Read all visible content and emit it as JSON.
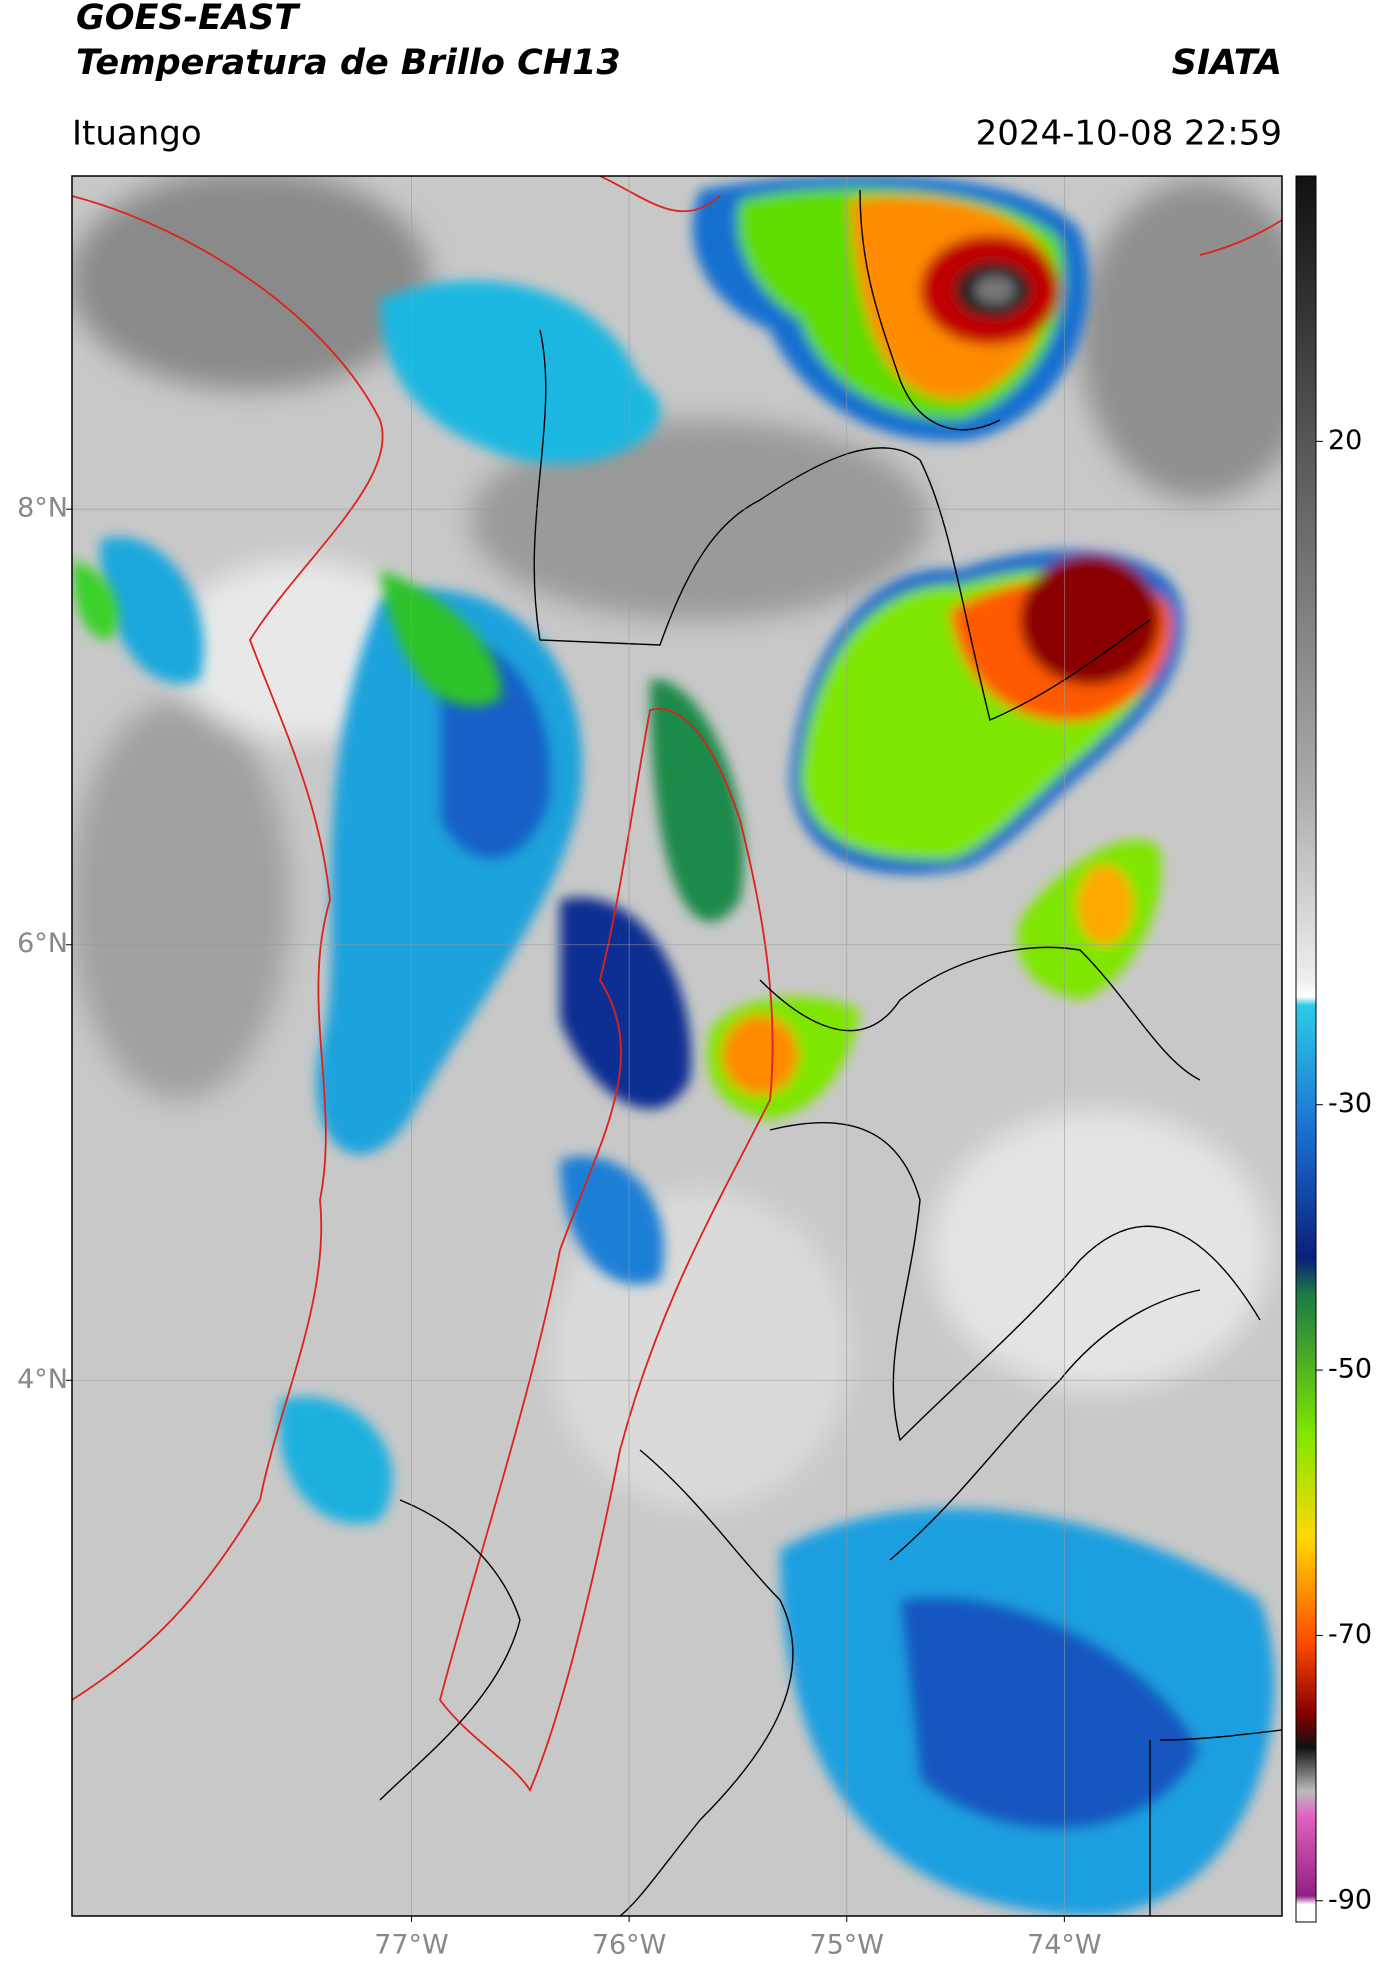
{
  "header": {
    "title": "GOES-EAST",
    "subtitle": "Temperatura de Brillo CH13",
    "brand": "SIATA",
    "location": "Ituango",
    "timestamp": "2024-10-08 22:59"
  },
  "map": {
    "xlim": [
      -78.56,
      -73.0
    ],
    "ylim": [
      1.54,
      9.53
    ],
    "xticks": [
      {
        "value": -77,
        "label": "77°W"
      },
      {
        "value": -76,
        "label": "76°W"
      },
      {
        "value": -75,
        "label": "75°W"
      },
      {
        "value": -74,
        "label": "74°W"
      }
    ],
    "yticks": [
      {
        "value": 8,
        "label": "8°N"
      },
      {
        "value": 6,
        "label": "6°N"
      },
      {
        "value": 4,
        "label": "4°N"
      }
    ],
    "grid": true
  },
  "colorbar": {
    "clim": [
      -91.6,
      40
    ],
    "ticks": [
      20,
      -30,
      -50,
      -70,
      -90
    ]
  }
}
